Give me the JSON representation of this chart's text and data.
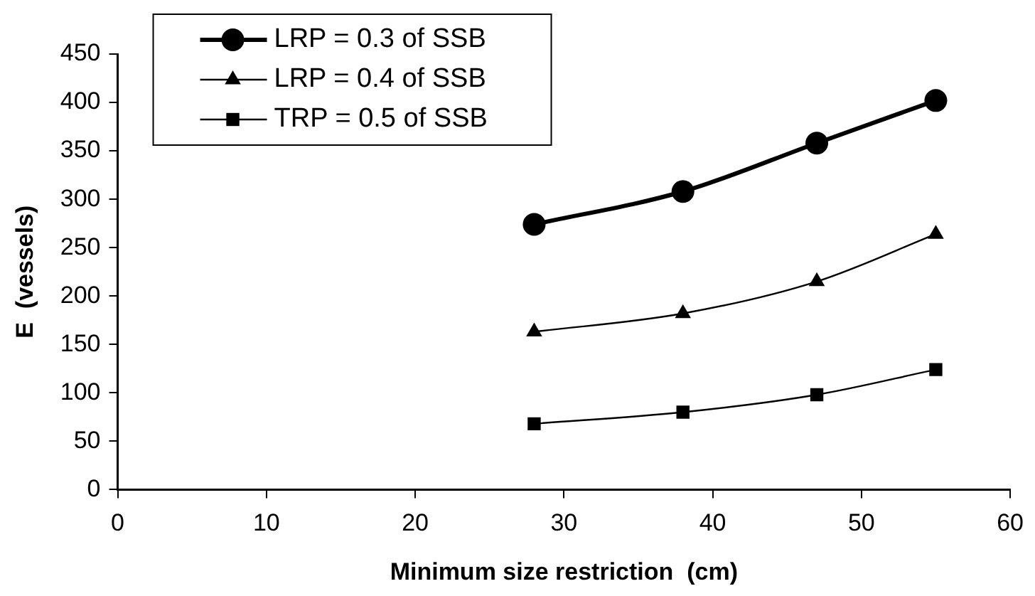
{
  "chart_data": {
    "type": "line",
    "xlabel": "Minimum size restriction  (cm)",
    "ylabel": "E  (vessels)",
    "xlim": [
      0,
      60
    ],
    "xticks": [
      0,
      10,
      20,
      30,
      40,
      50,
      60
    ],
    "ylim": [
      0,
      450
    ],
    "yticks": [
      0,
      50,
      100,
      150,
      200,
      250,
      300,
      350,
      400,
      450
    ],
    "x": [
      28,
      38,
      47,
      55
    ],
    "grid": false,
    "legend": "top left",
    "series": [
      {
        "name": "LRP = 0.3 of SSB",
        "color": "#000000",
        "marker": "circle",
        "values": [
          274,
          308,
          358,
          402
        ]
      },
      {
        "name": "LRP = 0.4 of SSB",
        "color": "#000000",
        "marker": "triangle",
        "values": [
          163,
          182,
          215,
          264
        ]
      },
      {
        "name": "TRP = 0.5 of SSB",
        "color": "#000000",
        "marker": "square",
        "values": [
          68,
          80,
          98,
          124
        ]
      }
    ]
  }
}
